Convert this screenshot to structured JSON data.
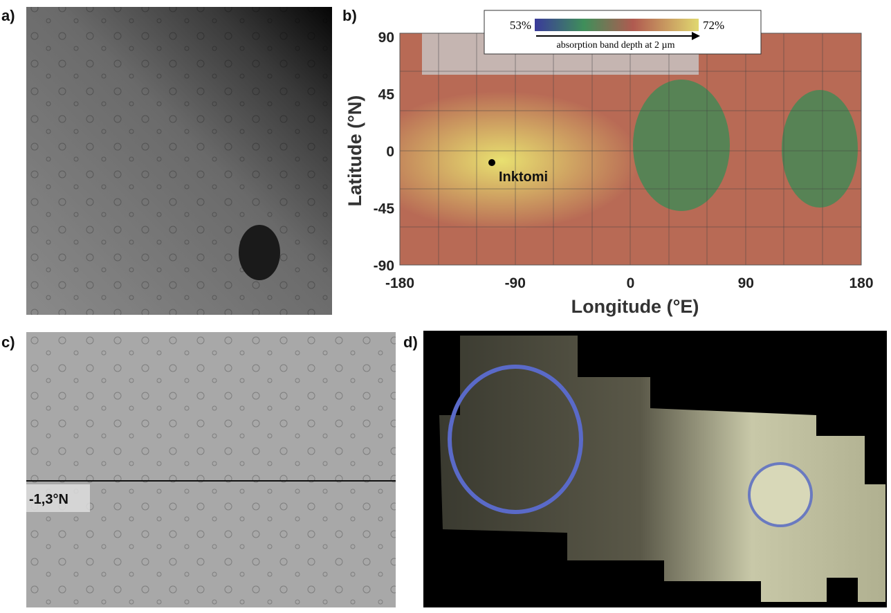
{
  "panels": {
    "a": {
      "label": "a)"
    },
    "b": {
      "label": "b)",
      "colorbar": {
        "min_label": "53%",
        "max_label": "72%",
        "caption": "absorption band depth at 2 µm"
      },
      "y_axis": {
        "title": "Latitude (°N)",
        "ticks": [
          "90",
          "45",
          "0",
          "-45",
          "-90"
        ]
      },
      "x_axis": {
        "title": "Longitude (°E)",
        "ticks": [
          "-180",
          "-90",
          "0",
          "90",
          "180"
        ]
      },
      "marker": "Inktomi"
    },
    "c": {
      "label": "c)",
      "annotation": "-1,3°N"
    },
    "d": {
      "label": "d)"
    }
  }
}
